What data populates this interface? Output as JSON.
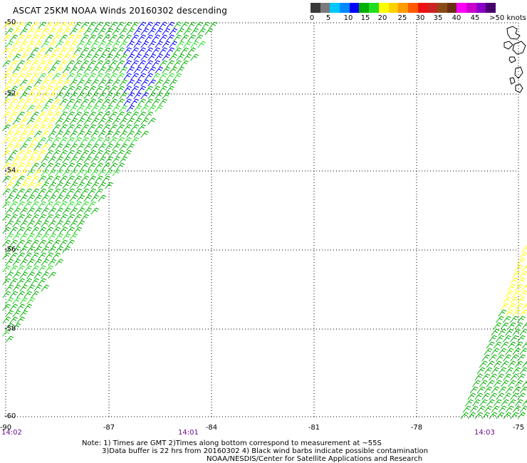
{
  "title": "ASCAT 25KM NOAA Winds 20160302 descending",
  "colorbar": {
    "colors": [
      "#3a3a3a",
      "#7a7a7a",
      "#00c8ff",
      "#0088ff",
      "#0000ff",
      "#00b000",
      "#22dd22",
      "#ffff00",
      "#ffd000",
      "#ff9a00",
      "#ff5a00",
      "#ee1111",
      "#cc2222",
      "#8a4a18",
      "#6b2f10",
      "#ff00ff",
      "#cc00cc",
      "#8a00c8",
      "#48006e"
    ],
    "labels": [
      "0",
      "5",
      "10",
      "15",
      "20",
      "25",
      "30",
      "35",
      "40",
      "45",
      ">50 knots"
    ],
    "label_positions_note": "labels every 5 knots"
  },
  "map": {
    "lat_labels": [
      "-50",
      "-52",
      "-54",
      "-56",
      "-58",
      "-60"
    ],
    "lon_labels": [
      "-90",
      "-87",
      "-84",
      "-81",
      "-78",
      "-75"
    ],
    "time_labels": [
      "14:02",
      "14:01",
      "14:03"
    ]
  },
  "notes": {
    "line1": "Note: 1) Times are GMT 2)Times along bottom correspond to measurement at ~55S",
    "line2": "3)Data buffer is 22 hrs from 20160302 4) Black wind barbs indicate possible contamination",
    "line3": "NOAA/NESDIS/Center for Satellite Applications and Research"
  }
}
